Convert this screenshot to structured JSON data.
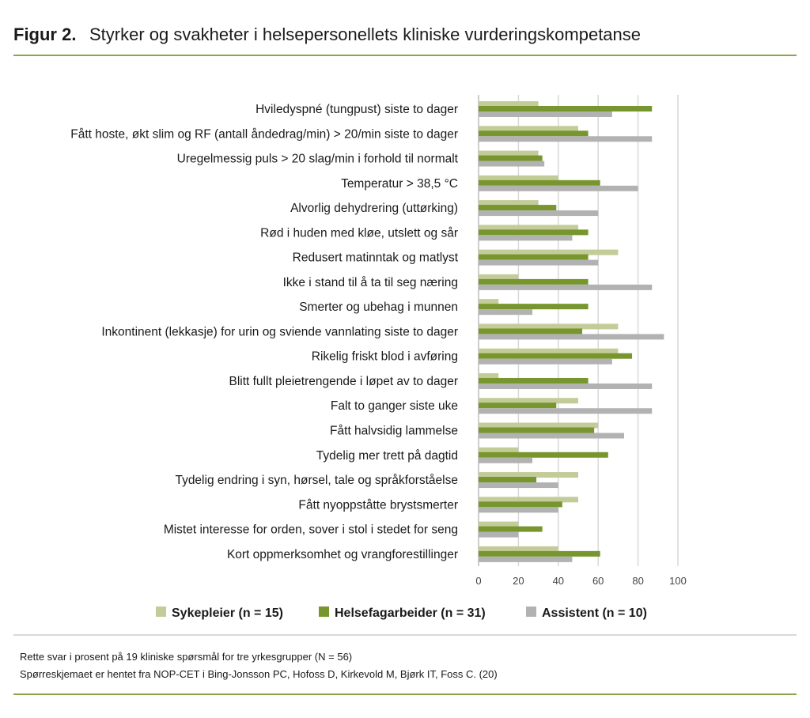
{
  "figure_label": "Figur 2.",
  "title": "Styrker og svakheter i helsepersonellets kliniske vurderingskompetanse",
  "footnotes": [
    "Rette svar i prosent på 19 kliniske spørsmål for tre yrkesgrupper (N = 56)",
    "Spørreskjemaet er hentet fra NOP-CET i Bing-Jonsson PC, Hofoss D, Kirkevold M, Bjørk IT, Foss C. (20)"
  ],
  "colors": {
    "accent_line": "#8aa64a",
    "divider": "#cccccc"
  },
  "chart_data": {
    "type": "bar",
    "orientation": "horizontal",
    "title": "",
    "xlabel": "",
    "ylabel": "",
    "xlim": [
      0,
      100
    ],
    "xticks": [
      0,
      20,
      40,
      60,
      80,
      100
    ],
    "grid": true,
    "legend_position": "bottom",
    "categories": [
      "Hviledyspné (tungpust) siste to dager",
      "Fått hoste, økt slim og RF (antall åndedrag/min) > 20/min siste to dager",
      "Uregelmessig puls > 20 slag/min i forhold til normalt",
      "Temperatur > 38,5 °C",
      "Alvorlig dehydrering (uttørking)",
      "Rød i huden med kløe, utslett og sår",
      "Redusert matinntak og matlyst",
      "Ikke i stand til å ta til seg næring",
      "Smerter og ubehag i munnen",
      "Inkontinent (lekkasje) for urin og sviende vannlating siste to dager",
      "Rikelig friskt blod i avføring",
      "Blitt fullt pleietrengende i løpet av to dager",
      "Falt to ganger siste uke",
      "Fått halvsidig lammelse",
      "Tydelig mer trett på dagtid",
      "Tydelig endring i syn, hørsel, tale og språkforståelse",
      "Fått nyoppståtte brystsmerter",
      "Mistet interesse for orden, sover i stol i stedet for seng",
      "Kort oppmerksomhet og vrangforestillinger"
    ],
    "series": [
      {
        "name": "Sykepleier (n = 15)",
        "color": "#c3cc98",
        "values": [
          30,
          50,
          30,
          40,
          30,
          50,
          70,
          20,
          10,
          70,
          70,
          10,
          50,
          60,
          20,
          50,
          50,
          20,
          40
        ]
      },
      {
        "name": "Helsefagarbeider (n = 31)",
        "color": "#77962e",
        "values": [
          87,
          55,
          32,
          61,
          39,
          55,
          55,
          55,
          55,
          52,
          77,
          55,
          39,
          58,
          65,
          29,
          42,
          32,
          61
        ]
      },
      {
        "name": "Assistent (n = 10)",
        "color": "#b2b2b2",
        "values": [
          67,
          87,
          33,
          80,
          60,
          47,
          60,
          87,
          27,
          93,
          67,
          87,
          87,
          73,
          27,
          40,
          40,
          20,
          47
        ]
      }
    ]
  }
}
